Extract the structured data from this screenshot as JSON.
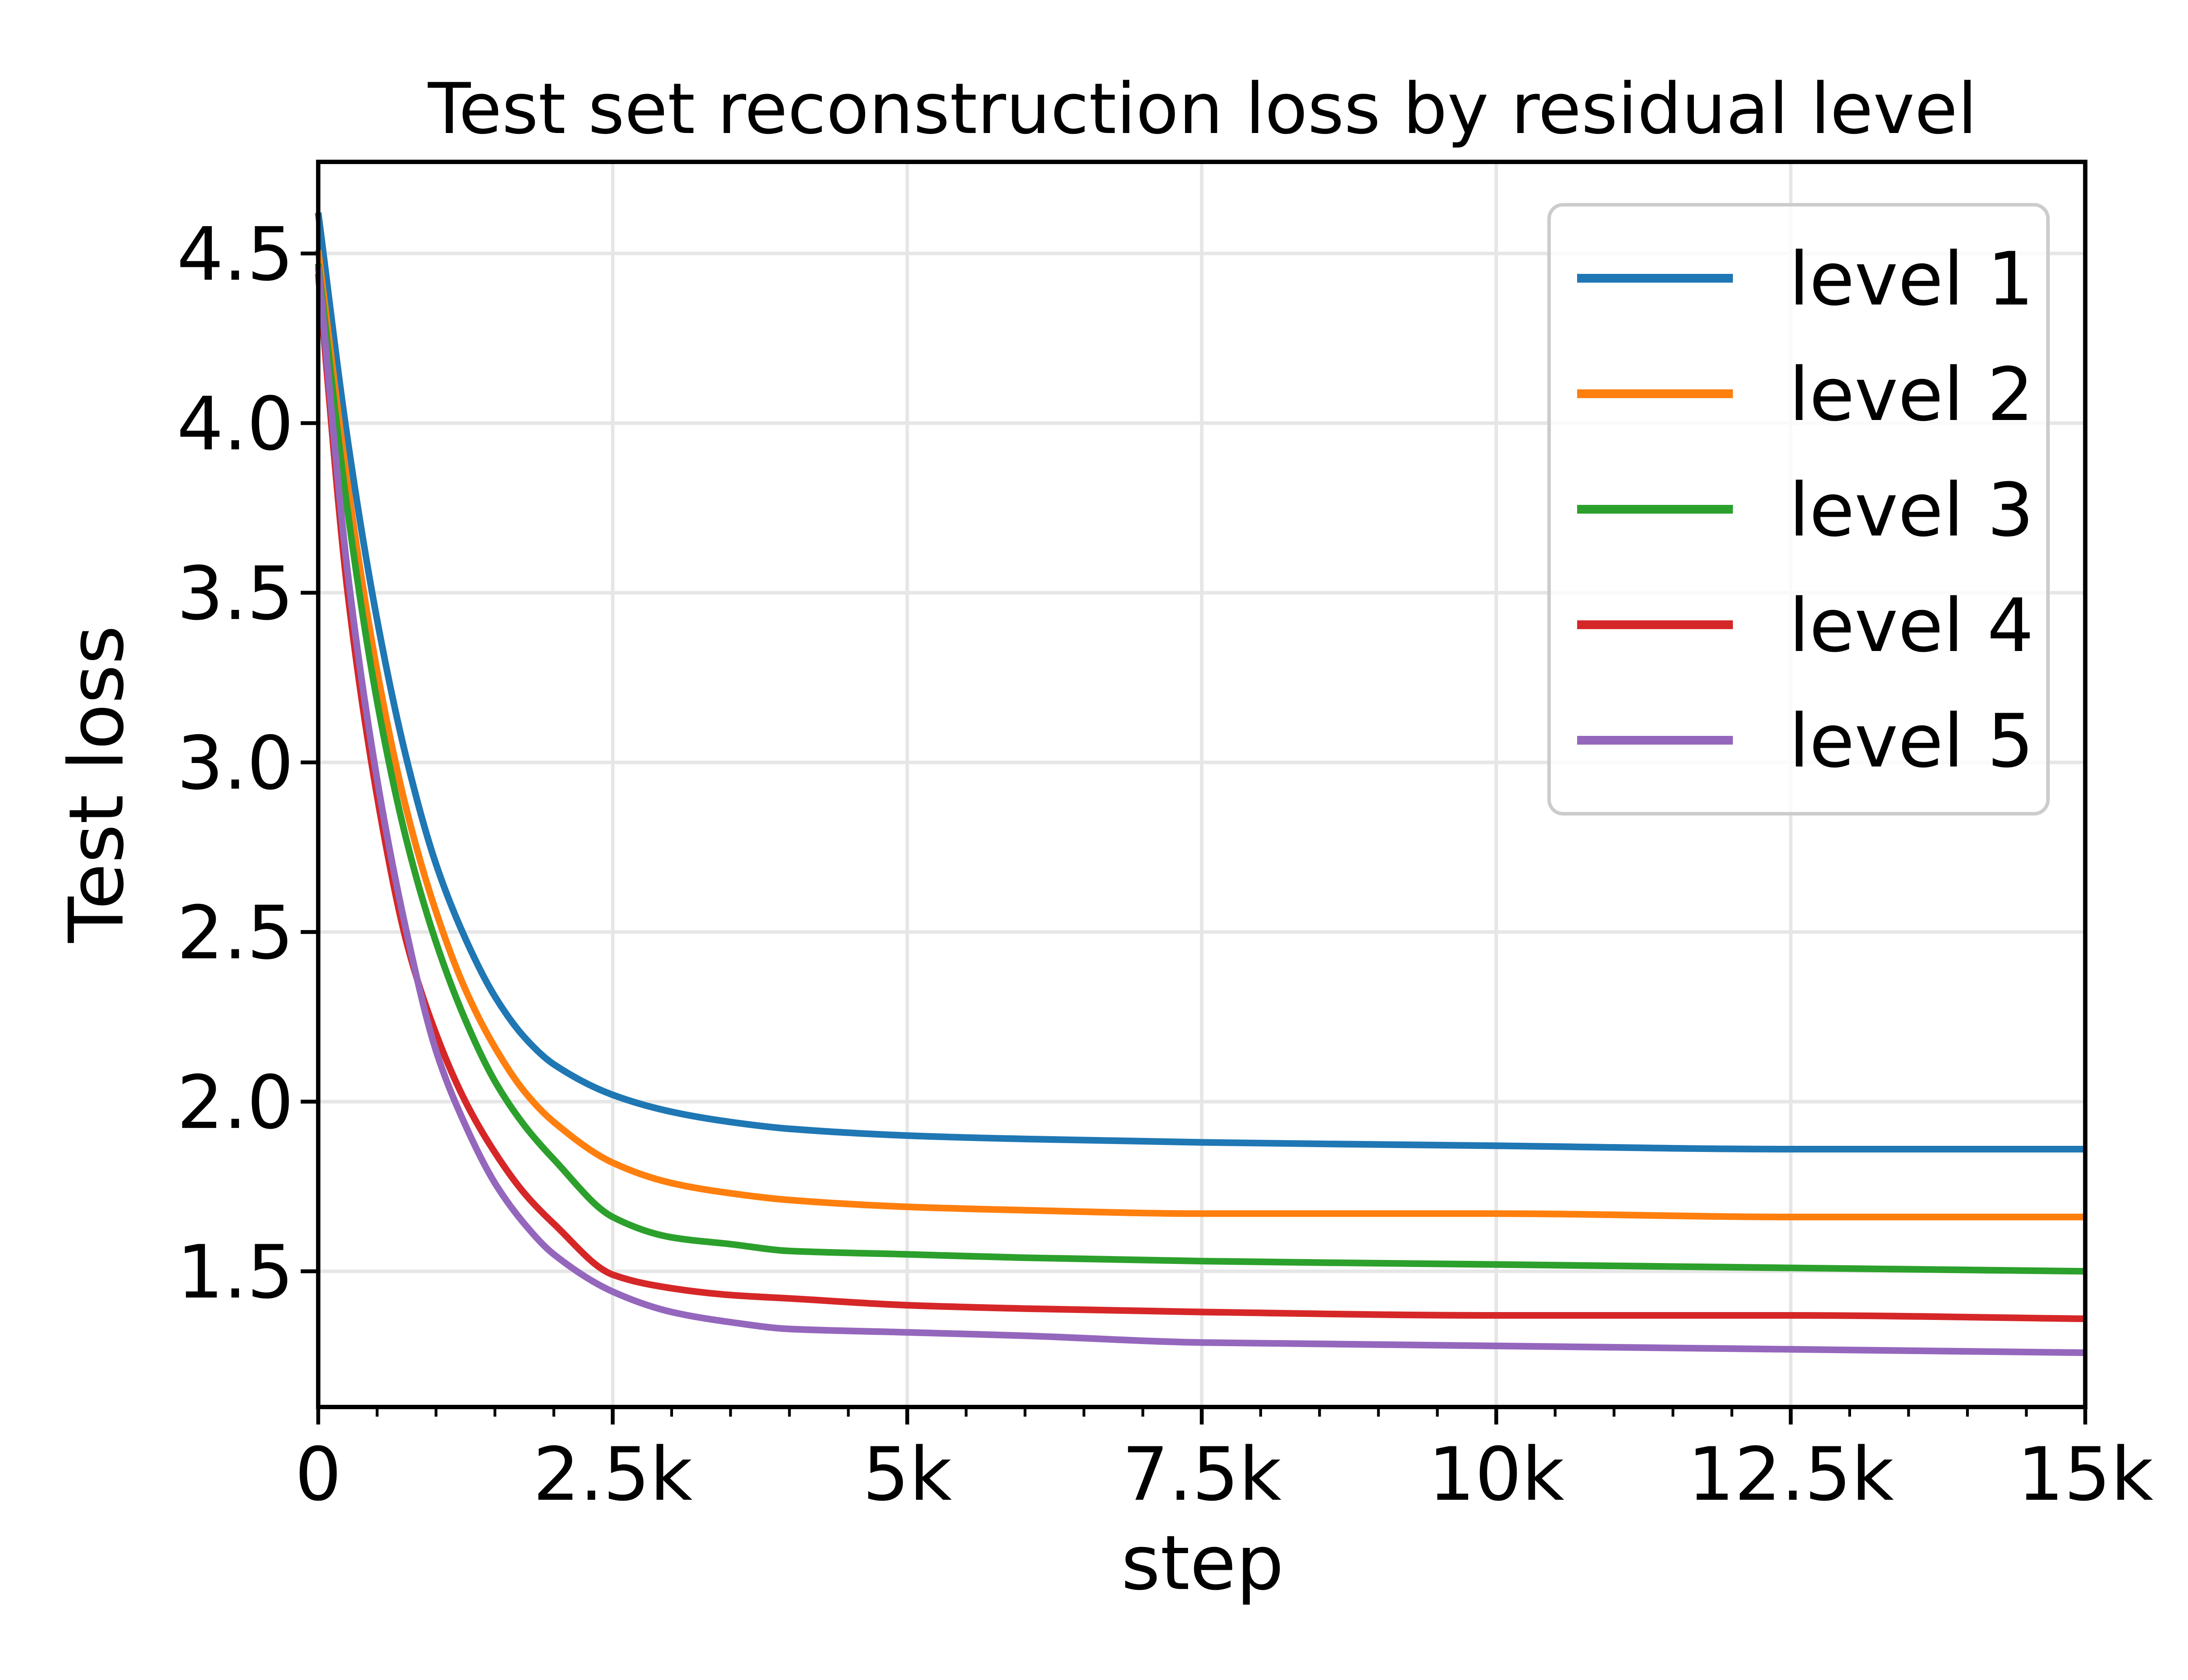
{
  "figure": {
    "background": "#ffffff",
    "axis_color": "#000000",
    "grid_color": "#e6e6e6",
    "legend_border_color": "#cccccc",
    "legend_background": "#ffffff"
  },
  "chart_data": {
    "type": "line",
    "title": "Test set reconstruction loss by residual level",
    "xlabel": "step",
    "ylabel": "Test loss",
    "xlim": [
      0,
      15000
    ],
    "ylim": [
      1.1,
      4.77
    ],
    "grid": true,
    "legend_position": "upper right",
    "xtick_values": [
      0,
      2500,
      5000,
      7500,
      10000,
      12500,
      15000
    ],
    "xtick_labels": [
      "0",
      "2.5k",
      "5k",
      "7.5k",
      "10k",
      "12.5k",
      "15k"
    ],
    "x_minor_interval": 500,
    "ytick_values": [
      1.5,
      2.0,
      2.5,
      3.0,
      3.5,
      4.0,
      4.5
    ],
    "ytick_labels": [
      "1.5",
      "2.0",
      "2.5",
      "3.0",
      "3.5",
      "4.0",
      "4.5"
    ],
    "x": [
      0,
      250,
      500,
      750,
      1000,
      1250,
      1500,
      1750,
      2000,
      2500,
      3000,
      3500,
      4000,
      5000,
      6000,
      7500,
      10000,
      12500,
      15000
    ],
    "series": [
      {
        "name": "level 1",
        "color": "#1f77b4",
        "values": [
          4.62,
          3.95,
          3.42,
          3.01,
          2.7,
          2.48,
          2.31,
          2.19,
          2.11,
          2.02,
          1.97,
          1.94,
          1.92,
          1.9,
          1.89,
          1.88,
          1.87,
          1.86,
          1.86
        ]
      },
      {
        "name": "level 2",
        "color": "#ff7f0e",
        "values": [
          4.51,
          3.82,
          3.27,
          2.86,
          2.56,
          2.33,
          2.16,
          2.03,
          1.94,
          1.82,
          1.76,
          1.73,
          1.71,
          1.69,
          1.68,
          1.67,
          1.67,
          1.66,
          1.66
        ]
      },
      {
        "name": "level 3",
        "color": "#2ca02c",
        "values": [
          4.47,
          3.74,
          3.18,
          2.77,
          2.47,
          2.24,
          2.06,
          1.93,
          1.83,
          1.66,
          1.6,
          1.58,
          1.56,
          1.55,
          1.54,
          1.53,
          1.52,
          1.51,
          1.5
        ]
      },
      {
        "name": "level 4",
        "color": "#d62728",
        "values": [
          4.44,
          3.5,
          2.9,
          2.47,
          2.2,
          2.0,
          1.85,
          1.73,
          1.64,
          1.49,
          1.45,
          1.43,
          1.42,
          1.4,
          1.39,
          1.38,
          1.37,
          1.37,
          1.36
        ]
      },
      {
        "name": "level 5",
        "color": "#9467bd",
        "values": [
          4.46,
          3.56,
          2.95,
          2.5,
          2.15,
          1.93,
          1.76,
          1.64,
          1.55,
          1.44,
          1.38,
          1.35,
          1.33,
          1.32,
          1.31,
          1.29,
          1.28,
          1.27,
          1.26
        ]
      }
    ]
  }
}
